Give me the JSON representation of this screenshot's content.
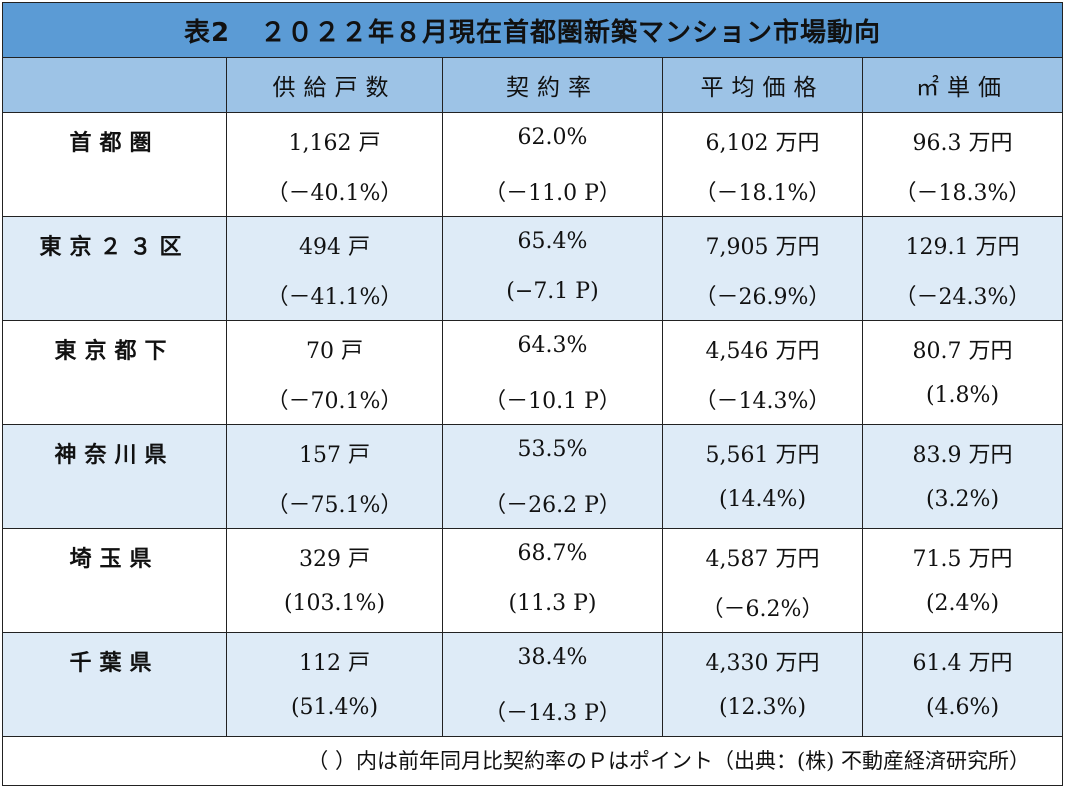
{
  "title": {
    "label": "表2",
    "text": "２０２２年８月現在首都圏新築マンション市場動向"
  },
  "headers": [
    "",
    "供給戸数",
    "契約率",
    "平均価格",
    "㎡単価"
  ],
  "rows": [
    {
      "name": "首都圏",
      "supply": "1,162 戸",
      "supply_change": "（－40.1%）",
      "rate": "62.0%",
      "rate_change": "（－11.0 P）",
      "price": "6,102 万円",
      "price_change": "（－18.1%）",
      "unit": "96.3 万円",
      "unit_change": "（－18.3%）"
    },
    {
      "name": "東京２３区",
      "supply": "494 戸",
      "supply_change": "（－41.1%）",
      "rate": "65.4%",
      "rate_change": "(−7.1 P)",
      "price": "7,905 万円",
      "price_change": "（－26.9%）",
      "unit": "129.1 万円",
      "unit_change": "（－24.3%）"
    },
    {
      "name": "東京都下",
      "supply": "70 戸",
      "supply_change": "（－70.1%）",
      "rate": "64.3%",
      "rate_change": "（－10.1 P）",
      "price": "4,546 万円",
      "price_change": "（－14.3%）",
      "unit": "80.7 万円",
      "unit_change": "(1.8%)"
    },
    {
      "name": "神奈川県",
      "supply": "157 戸",
      "supply_change": "（－75.1%）",
      "rate": "53.5%",
      "rate_change": "（－26.2 P）",
      "price": "5,561 万円",
      "price_change": "(14.4%)",
      "unit": "83.9 万円",
      "unit_change": "(3.2%)"
    },
    {
      "name": "埼玉県",
      "supply": "329 戸",
      "supply_change": "(103.1%)",
      "rate": "68.7%",
      "rate_change": "(11.3 P)",
      "price": "4,587 万円",
      "price_change": "（－6.2%）",
      "unit": "71.5 万円",
      "unit_change": "(2.4%)"
    },
    {
      "name": "千葉県",
      "supply": "112 戸",
      "supply_change": "(51.4%)",
      "rate": "38.4%",
      "rate_change": "（－14.3 P）",
      "price": "4,330 万円",
      "price_change": "(12.3%)",
      "unit": "61.4 万円",
      "unit_change": "(4.6%)"
    }
  ],
  "footnote": "（ ）内は前年同月比契約率のＰはポイント（出典：(株) 不動産経済研究所）",
  "colors": {
    "title_bg": "#5b9bd5",
    "header_bg": "#9dc3e6",
    "shade_bg": "#deebf7"
  }
}
